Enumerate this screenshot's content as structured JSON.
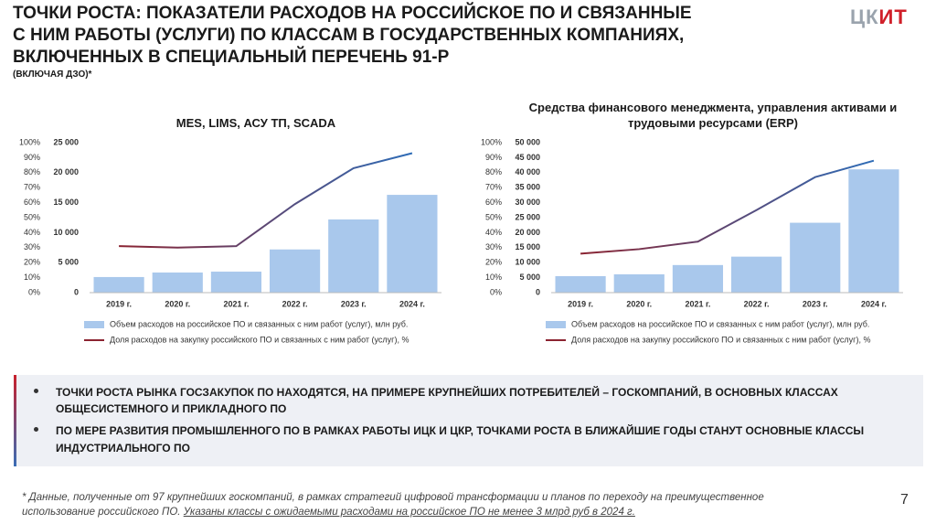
{
  "header": {
    "title_lines": [
      "ТОЧКИ РОСТА: ПОКАЗАТЕЛИ РАСХОДОВ НА РОССИЙСКОЕ ПО И СВЯЗАННЫЕ",
      "С НИМ РАБОТЫ (УСЛУГИ) ПО КЛАССАМ В ГОСУДАРСТВЕННЫХ КОМПАНИЯХ,",
      "ВКЛЮЧЕННЫХ В СПЕЦИАЛЬНЫЙ ПЕРЕЧЕНЬ 91-Р"
    ],
    "subtitle": "(ВКЛЮЧАЯ ДЗО)*"
  },
  "logo": {
    "part1": "ЦК",
    "part2": "ИТ"
  },
  "chart_data": [
    {
      "type": "bar_line",
      "title": "MES, LIMS, АСУ ТП, SCADA",
      "categories": [
        "2019 г.",
        "2020 г.",
        "2021 г.",
        "2022 г.",
        "2023 г.",
        "2024 г."
      ],
      "series": [
        {
          "name": "Объем расходов на российское ПО и связанных с ним работ (услуг), млн руб.",
          "type": "bar",
          "color": "#a9c8ec",
          "values": [
            2600,
            3350,
            3500,
            7200,
            12200,
            16300
          ]
        },
        {
          "name": "Доля расходов на закупку российского ПО и связанных с ним работ (услуг), %",
          "type": "line",
          "axis": "y2",
          "color": "#8b2331",
          "values": [
            31,
            30,
            31,
            59,
            83,
            93
          ]
        }
      ],
      "ylim": [
        0,
        25000
      ],
      "yticks": [
        0,
        {
          "value": 5000,
          "label": "5 000"
        },
        {
          "value": 10000,
          "label": "10 000"
        },
        {
          "value": 15000,
          "label": "15 000"
        },
        {
          "value": 20000,
          "label": "20 000"
        },
        {
          "value": 25000,
          "label": "25 000"
        }
      ],
      "y2lim": [
        0,
        100
      ],
      "y2ticks": [
        {
          "value": 0,
          "label": "0%"
        },
        {
          "value": 10,
          "label": "10%"
        },
        {
          "value": 20,
          "label": "20%"
        },
        {
          "value": 30,
          "label": "30%"
        },
        {
          "value": 40,
          "label": "40%"
        },
        {
          "value": 50,
          "label": "50%"
        },
        {
          "value": 60,
          "label": "60%"
        },
        {
          "value": 70,
          "label": "70%"
        },
        {
          "value": 80,
          "label": "80%"
        },
        {
          "value": 90,
          "label": "90%"
        },
        {
          "value": 100,
          "label": "100%"
        }
      ],
      "grid": false
    },
    {
      "type": "bar_line",
      "title": "Средства финансового менеджмента, управления активами и трудовыми ресурсами (ERP)",
      "categories": [
        "2019 г.",
        "2020 г.",
        "2021 г.",
        "2022 г.",
        "2023 г.",
        "2024 г."
      ],
      "series": [
        {
          "name": "Объем расходов на российское ПО и связанных с ним работ (услуг), млн руб.",
          "type": "bar",
          "color": "#a9c8ec",
          "values": [
            5500,
            6100,
            9200,
            12000,
            23300,
            41100
          ]
        },
        {
          "name": "Доля расходов на закупку российского ПО и связанных с ним работ (услуг), %",
          "type": "line",
          "axis": "y2",
          "color": "#8b2331",
          "values": [
            26,
            29,
            34,
            55,
            77,
            88
          ]
        }
      ],
      "ylim": [
        0,
        50000
      ],
      "yticks": [
        0,
        {
          "value": 5000,
          "label": "5 000"
        },
        {
          "value": 10000,
          "label": "10 000"
        },
        {
          "value": 15000,
          "label": "15 000"
        },
        {
          "value": 20000,
          "label": "20 000"
        },
        {
          "value": 25000,
          "label": "25 000"
        },
        {
          "value": 30000,
          "label": "30 000"
        },
        {
          "value": 35000,
          "label": "35 000"
        },
        {
          "value": 40000,
          "label": "40 000"
        },
        {
          "value": 45000,
          "label": "45 000"
        },
        {
          "value": 50000,
          "label": "50 000"
        }
      ],
      "y2lim": [
        0,
        100
      ],
      "y2ticks": [
        {
          "value": 0,
          "label": "0%"
        },
        {
          "value": 10,
          "label": "10%"
        },
        {
          "value": 20,
          "label": "20%"
        },
        {
          "value": 30,
          "label": "30%"
        },
        {
          "value": 40,
          "label": "40%"
        },
        {
          "value": 50,
          "label": "50%"
        },
        {
          "value": 60,
          "label": "60%"
        },
        {
          "value": 70,
          "label": "70%"
        },
        {
          "value": 80,
          "label": "80%"
        },
        {
          "value": 90,
          "label": "90%"
        },
        {
          "value": 100,
          "label": "100%"
        }
      ],
      "grid": false
    }
  ],
  "bullets": [
    [
      "ТОЧКИ РОСТА РЫНКА ГОСЗАКУПОК ПО НАХОДЯТСЯ, НА ПРИМЕРЕ КРУПНЕЙШИХ ПОТРЕБИТЕЛЕЙ – ГОСКОМПАНИЙ, В ОСНОВНЫХ КЛАССАХ",
      "ОБЩЕСИСТЕМНОГО И ПРИКЛАДНОГО ПО"
    ],
    [
      "ПО МЕРЕ РАЗВИТИЯ ПРОМЫШЛЕННОГО ПО В РАМКАХ РАБОТЫ ИЦК И ЦКР, ТОЧКАМИ РОСТА В БЛИЖАЙШИЕ ГОДЫ СТАНУТ ОСНОВНЫЕ КЛАССЫ",
      "ИНДУСТРИАЛЬНОГО ПО"
    ]
  ],
  "footnote": {
    "line1": "* Данные, полученные от 97 крупнейших госкомпаний, в рамках стратегий цифровой трансформации и планов по переходу на преимущественное",
    "line2": "использование российского ПО. ",
    "line2_underlined": "Указаны классы с ожидаемыми расходами на российское ПО не менее 3 млрд руб в 2024 г."
  },
  "page_number": "7"
}
